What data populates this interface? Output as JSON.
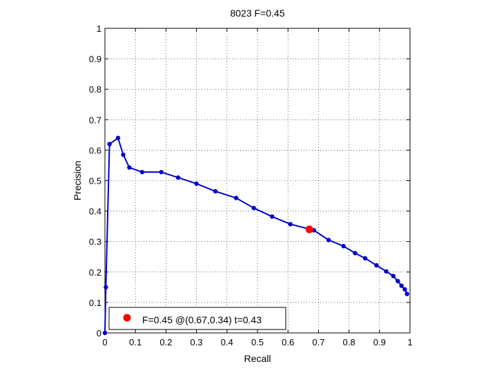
{
  "chart_data": {
    "type": "line",
    "title": "8023 F=0.45",
    "xlabel": "Recall",
    "ylabel": "Precision",
    "xlim": [
      0,
      1
    ],
    "ylim": [
      0,
      1
    ],
    "grid": true,
    "x_ticks": [
      "0",
      "0.1",
      "0.2",
      "0.3",
      "0.4",
      "0.5",
      "0.6",
      "0.7",
      "0.8",
      "0.9",
      "1"
    ],
    "y_ticks": [
      "0",
      "0.1",
      "0.2",
      "0.3",
      "0.4",
      "0.5",
      "0.6",
      "0.7",
      "0.8",
      "0.9",
      "1"
    ],
    "series": [
      {
        "color": "#0000cc",
        "x": [
          0.0,
          0.003,
          0.015,
          0.043,
          0.06,
          0.08,
          0.122,
          0.185,
          0.24,
          0.3,
          0.362,
          0.43,
          0.488,
          0.548,
          0.608,
          0.685,
          0.733,
          0.782,
          0.82,
          0.853,
          0.89,
          0.922,
          0.945,
          0.96,
          0.972,
          0.983,
          0.99
        ],
        "y": [
          0.0,
          0.15,
          0.62,
          0.64,
          0.585,
          0.543,
          0.528,
          0.528,
          0.51,
          0.49,
          0.465,
          0.443,
          0.41,
          0.382,
          0.357,
          0.337,
          0.305,
          0.285,
          0.262,
          0.245,
          0.222,
          0.202,
          0.187,
          0.17,
          0.155,
          0.143,
          0.128
        ]
      }
    ],
    "best_point": {
      "x": 0.67,
      "y": 0.34,
      "color": "#ff0000"
    },
    "legend": {
      "placement": "bottom-left",
      "label": "F=0.45 @(0.67,0.34) t=0.43"
    }
  }
}
